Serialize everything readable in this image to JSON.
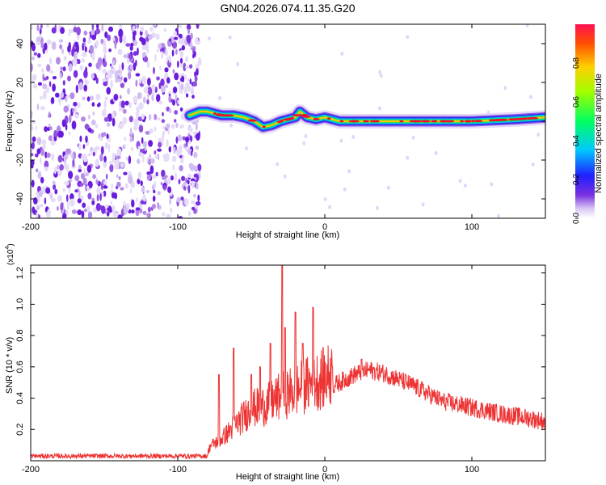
{
  "figure": {
    "title": "GN04.2026.074.11.35.G20"
  },
  "colors": {
    "line": "#ee3333",
    "axis": "#000000",
    "background": "#ffffff"
  },
  "chart_data": [
    {
      "type": "heatmap",
      "name": "spectrogram",
      "xlabel": "Height of straight line (km)",
      "ylabel": "Frequency (Hz)",
      "xlim": [
        -200,
        150
      ],
      "ylim": [
        -50,
        50
      ],
      "xticks": [
        -200,
        -100,
        0,
        100
      ],
      "yticks": [
        -40,
        -20,
        0,
        20,
        40
      ],
      "noise_region_x": [
        -200,
        -88
      ],
      "signal_track": {
        "x": [
          -92,
          -85,
          -80,
          -70,
          -62,
          -55,
          -48,
          -42,
          -36,
          -30,
          -25,
          -20,
          -17,
          -12,
          -6,
          0,
          10,
          30,
          60,
          100,
          130,
          150
        ],
        "y": [
          3,
          5,
          5,
          3,
          3,
          2,
          0,
          -3,
          -2,
          0,
          1,
          2,
          5,
          2,
          1,
          2,
          0,
          0,
          0,
          0,
          1,
          2
        ]
      },
      "colorbar": {
        "label": "Normalized spectral amplitude",
        "range": [
          0,
          1
        ],
        "ticks": [
          "0.0",
          "0.2",
          "0.4",
          "0.6",
          "0.8"
        ],
        "colormap": "rainbow"
      }
    },
    {
      "type": "line",
      "name": "snr",
      "xlabel": "Height of straight line (km)",
      "ylabel": "SNR (10 * v/v)",
      "y_multiplier": "(x10",
      "y_multiplier_exp": "4",
      "xlim": [
        -200,
        150
      ],
      "ylim": [
        0,
        1.25
      ],
      "xticks": [
        -200,
        -100,
        0,
        100
      ],
      "yticks": [
        "0.2",
        "0.4",
        "0.6",
        "0.8",
        "1.0",
        "1.2"
      ],
      "envelope": {
        "x": [
          -200,
          -150,
          -100,
          -80,
          -78,
          -70,
          -60,
          -50,
          -40,
          -30,
          -20,
          -10,
          0,
          10,
          20,
          30,
          40,
          60,
          80,
          100,
          120,
          140,
          150
        ],
        "y": [
          0.03,
          0.03,
          0.03,
          0.03,
          0.08,
          0.12,
          0.2,
          0.28,
          0.3,
          0.35,
          0.38,
          0.42,
          0.45,
          0.5,
          0.55,
          0.58,
          0.56,
          0.48,
          0.38,
          0.34,
          0.3,
          0.27,
          0.25
        ]
      },
      "spikes": [
        {
          "x": -72,
          "y": 0.55
        },
        {
          "x": -62,
          "y": 0.72
        },
        {
          "x": -50,
          "y": 0.55
        },
        {
          "x": -44,
          "y": 0.6
        },
        {
          "x": -37,
          "y": 0.75
        },
        {
          "x": -29,
          "y": 1.25
        },
        {
          "x": -27,
          "y": 0.85
        },
        {
          "x": -20,
          "y": 0.95
        },
        {
          "x": -15,
          "y": 0.75
        },
        {
          "x": -8,
          "y": 0.98
        },
        {
          "x": 5,
          "y": 0.6
        },
        {
          "x": 25,
          "y": 0.65
        }
      ]
    }
  ]
}
